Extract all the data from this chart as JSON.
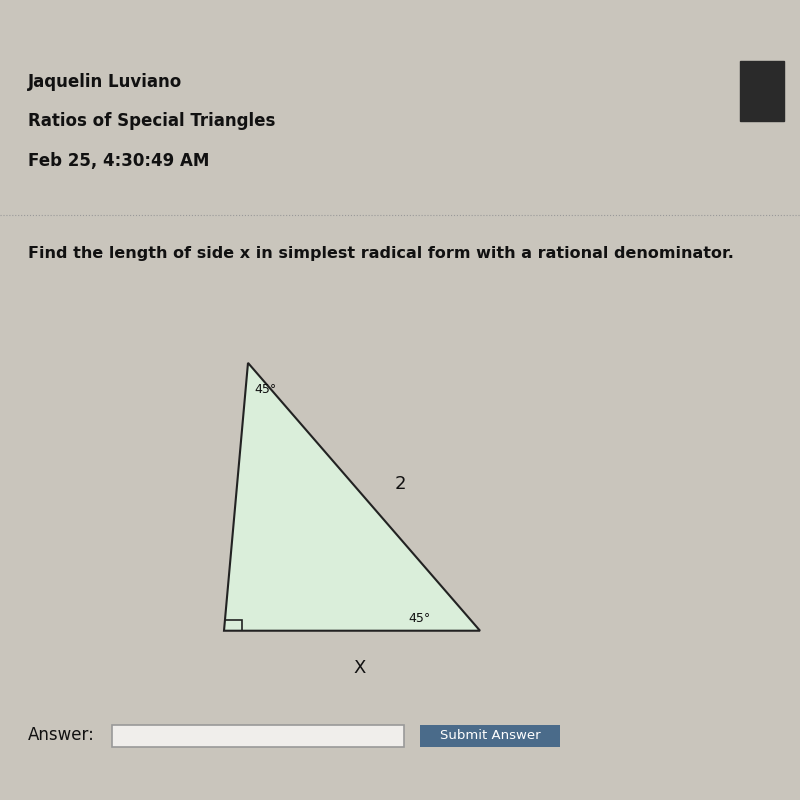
{
  "bg_top_black": "#0a0a0a",
  "bg_main": "#c9c5bc",
  "bg_content": "#ccc8bf",
  "bg_bottom_taskbar": "#2a2d3a",
  "bg_very_bottom": "#111111",
  "header_name": "Jaquelin Luviano",
  "header_subject": "Ratios of Special Triangles",
  "header_date": "Feb 25, 4:30:49 AM",
  "question_text": "Find the length of side x in simplest radical form with a rational denominator.",
  "angle_top": "45°",
  "angle_bottom_right": "45°",
  "hypotenuse_label": "2",
  "base_label": "X",
  "triangle_fill": "#daeeda",
  "triangle_edge": "#222222",
  "answer_label": "Answer:",
  "submit_button_text": "Submit Answer",
  "submit_button_color": "#4a6b8a",
  "submit_button_text_color": "#ffffff",
  "answer_box_color": "#f0eeeb",
  "answer_box_border": "#999999",
  "dotted_line_color": "#999999",
  "dark_rect_color": "#2a2a2a",
  "text_color": "#111111"
}
